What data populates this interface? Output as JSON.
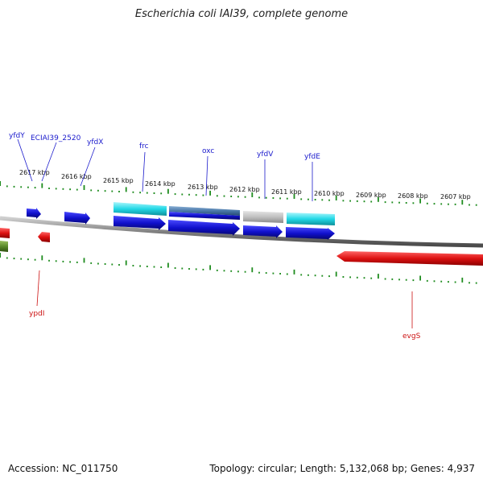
{
  "title": "Escherichia coli IAI39, complete genome",
  "footer": {
    "accession": "Accession: NC_011750",
    "topology": "Topology: circular; Length: 5,132,068 bp; Genes: 4,937"
  },
  "kbp_labels": [
    "2617 kbp",
    "2616 kbp",
    "2615 kbp",
    "2614 kbp",
    "2613 kbp",
    "2612 kbp",
    "2611 kbp",
    "2610 kbp",
    "2609 kbp",
    "2608 kbp",
    "2607 kbp"
  ],
  "genes_top": [
    "yfdY",
    "ECIAI39_2520",
    "yfdX",
    "frc",
    "oxc",
    "yfdV",
    "yfdE"
  ],
  "genes_bottom": [
    "ypdI",
    "evgS"
  ],
  "colors": {
    "forward_gene": "#1010cc",
    "cds_feature": "#22d8e6",
    "reverse_gene": "#dd1111",
    "tick": "#1e8c1e",
    "backbone": "#888888"
  }
}
